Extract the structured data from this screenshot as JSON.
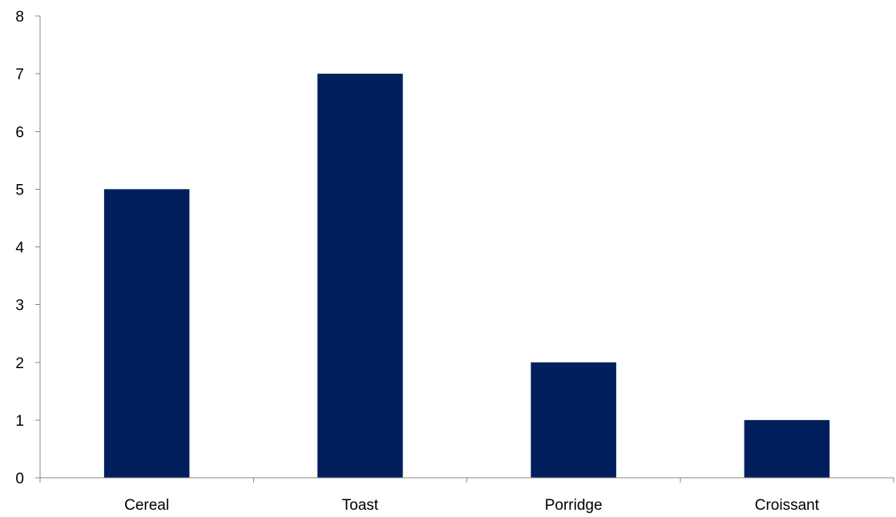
{
  "chart_data": {
    "type": "bar",
    "categories": [
      "Cereal",
      "Toast",
      "Porridge",
      "Croissant"
    ],
    "values": [
      5,
      7,
      2,
      1
    ],
    "title": "",
    "xlabel": "",
    "ylabel": "",
    "ylim": [
      0,
      8
    ],
    "yticks": [
      0,
      1,
      2,
      3,
      4,
      5,
      6,
      7,
      8
    ],
    "grid": false,
    "legend": "none",
    "bar_color": "#001f5c"
  }
}
